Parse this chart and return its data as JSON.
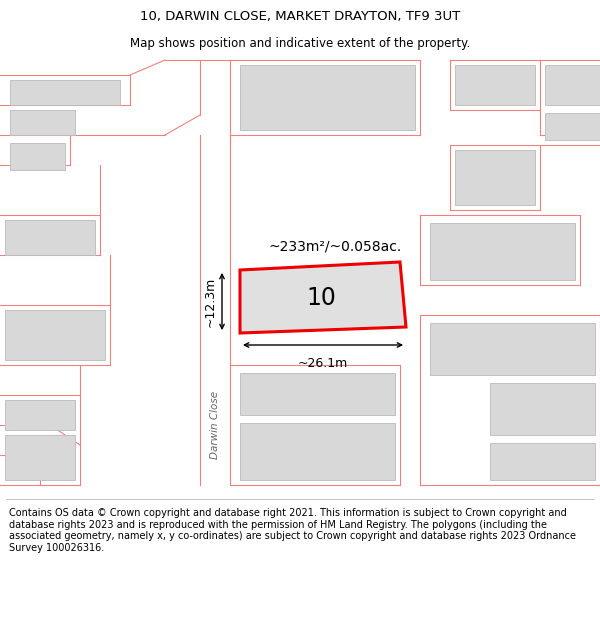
{
  "title": "10, DARWIN CLOSE, MARKET DRAYTON, TF9 3UT",
  "subtitle": "Map shows position and indicative extent of the property.",
  "footer": "Contains OS data © Crown copyright and database right 2021. This information is subject to Crown copyright and database rights 2023 and is reproduced with the permission of HM Land Registry. The polygons (including the associated geometry, namely x, y co-ordinates) are subject to Crown copyright and database rights 2023 Ordnance Survey 100026316.",
  "area_label": "~233m²/~0.058ac.",
  "width_label": "~26.1m",
  "height_label": "~12.3m",
  "street_label": "Darwin Close",
  "property_number": "10",
  "map_bg": "#f0f0f0",
  "building_fill": "#d8d8d8",
  "building_edge": "#bbbbbb",
  "plot_fill": "#e0e0e0",
  "plot_edge": "#ee0000",
  "pink_line": "#f08080",
  "title_fontsize": 9.5,
  "subtitle_fontsize": 8.5,
  "footer_fontsize": 7.0
}
